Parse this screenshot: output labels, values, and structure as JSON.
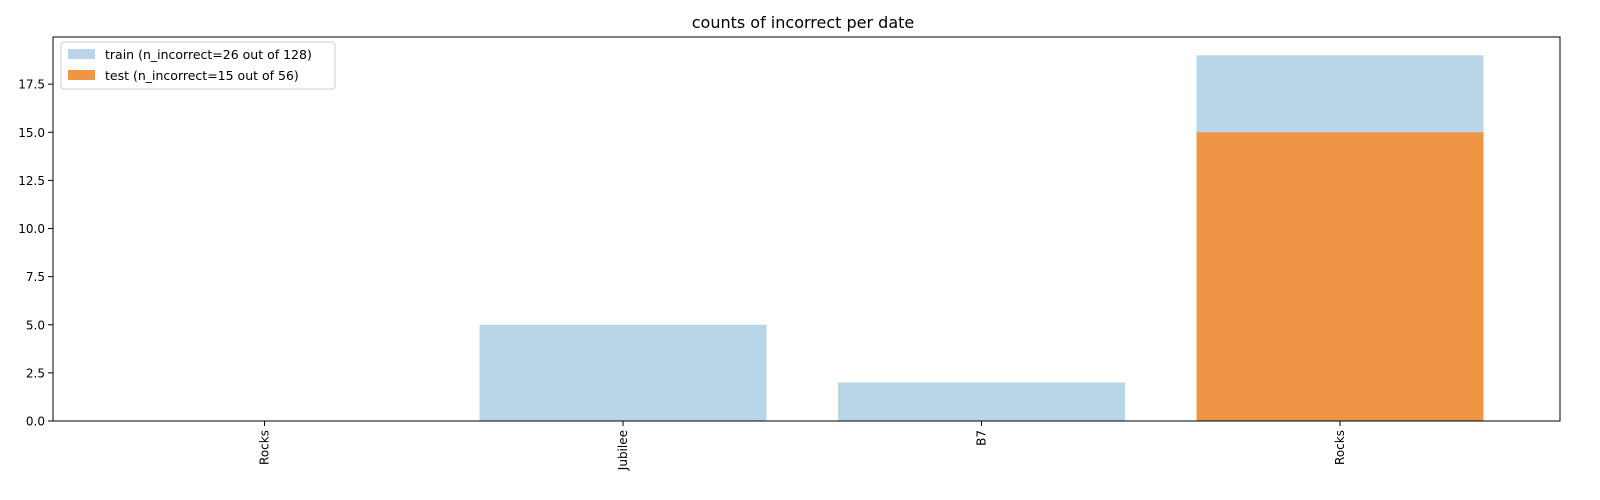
{
  "chart_data": {
    "type": "bar",
    "title": "counts of incorrect per date",
    "xlabel": "",
    "ylabel": "",
    "categories": [
      "Rocks",
      "Jubilee",
      "B7",
      "Rocks"
    ],
    "series": [
      {
        "name": "train (n_incorrect=26 out of 128)",
        "values": [
          0,
          5,
          2,
          19
        ],
        "color": "#b9d5e8"
      },
      {
        "name": "test (n_incorrect=15 out of 56)",
        "values": [
          0,
          0,
          0,
          15
        ],
        "color": "#ee9645"
      }
    ],
    "ylim": [
      0,
      19.95
    ],
    "yticks": [
      "0.0",
      "2.5",
      "5.0",
      "7.5",
      "10.0",
      "12.5",
      "15.0",
      "17.5"
    ],
    "grid": false,
    "legend_position": "top-left",
    "overlay": true
  }
}
